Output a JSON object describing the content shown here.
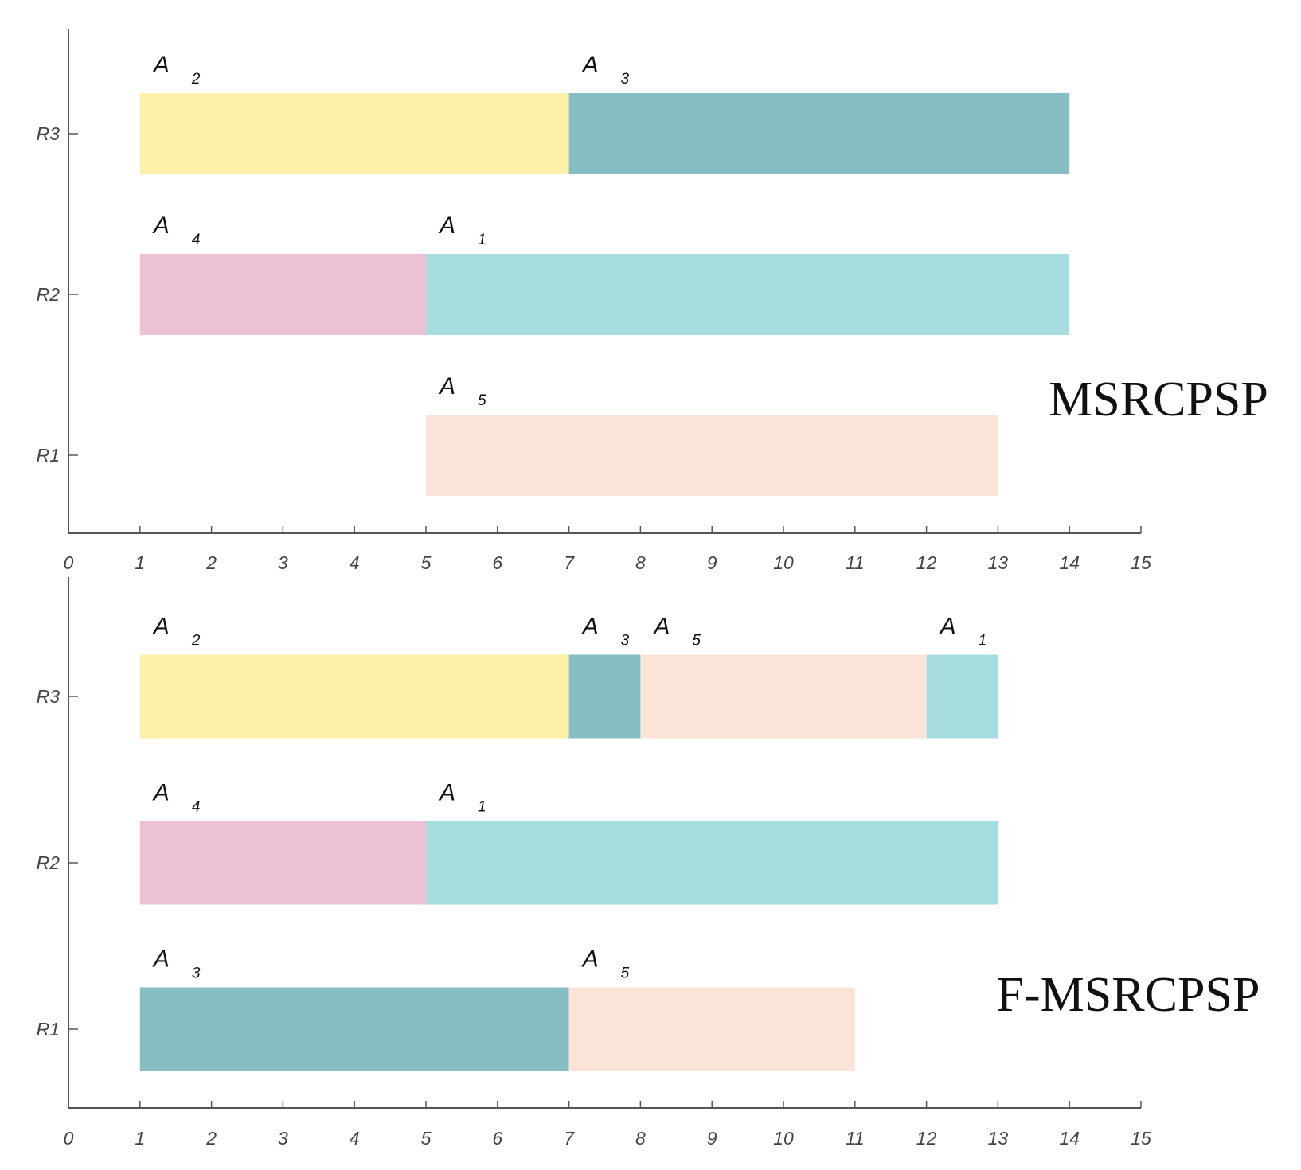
{
  "chart_data": [
    {
      "type": "gantt",
      "title": "MSRCPSP",
      "xlim": [
        0,
        15
      ],
      "x_ticks": [
        "0",
        "1",
        "2",
        "3",
        "4",
        "5",
        "6",
        "7",
        "8",
        "9",
        "10",
        "11",
        "12",
        "13",
        "14",
        "15"
      ],
      "resources": [
        "R3",
        "R2",
        "R1"
      ],
      "tasks": [
        {
          "resource": "R3",
          "activity": "A",
          "index": "2",
          "start": 1,
          "end": 7,
          "color": "#FDF1AA"
        },
        {
          "resource": "R3",
          "activity": "A",
          "index": "3",
          "start": 7,
          "end": 14,
          "color": "#86BEC3"
        },
        {
          "resource": "R2",
          "activity": "A",
          "index": "4",
          "start": 1,
          "end": 5,
          "color": "#EBC1D3"
        },
        {
          "resource": "R2",
          "activity": "A",
          "index": "1",
          "start": 5,
          "end": 14,
          "color": "#A6DEE0"
        },
        {
          "resource": "R1",
          "activity": "A",
          "index": "5",
          "start": 5,
          "end": 13,
          "color": "#FBE3D8"
        }
      ]
    },
    {
      "type": "gantt",
      "title": "F-MSRCPSP",
      "xlim": [
        0,
        15
      ],
      "x_ticks": [
        "0",
        "1",
        "2",
        "3",
        "4",
        "5",
        "6",
        "7",
        "8",
        "9",
        "10",
        "11",
        "12",
        "13",
        "14",
        "15"
      ],
      "resources": [
        "R3",
        "R2",
        "R1"
      ],
      "tasks": [
        {
          "resource": "R3",
          "activity": "A",
          "index": "2",
          "start": 1,
          "end": 7,
          "color": "#FDF1AA"
        },
        {
          "resource": "R3",
          "activity": "A",
          "index": "3",
          "start": 7,
          "end": 8,
          "color": "#86BEC3"
        },
        {
          "resource": "R3",
          "activity": "A",
          "index": "5",
          "start": 8,
          "end": 12,
          "color": "#FBE3D8"
        },
        {
          "resource": "R3",
          "activity": "A",
          "index": "1",
          "start": 12,
          "end": 13,
          "color": "#A6DEE0"
        },
        {
          "resource": "R2",
          "activity": "A",
          "index": "4",
          "start": 1,
          "end": 5,
          "color": "#EBC1D3"
        },
        {
          "resource": "R2",
          "activity": "A",
          "index": "1",
          "start": 5,
          "end": 13,
          "color": "#A6DEE0"
        },
        {
          "resource": "R1",
          "activity": "A",
          "index": "3",
          "start": 1,
          "end": 7,
          "color": "#86BEC3"
        },
        {
          "resource": "R1",
          "activity": "A",
          "index": "5",
          "start": 7,
          "end": 11,
          "color": "#FBE3D8"
        }
      ]
    }
  ]
}
